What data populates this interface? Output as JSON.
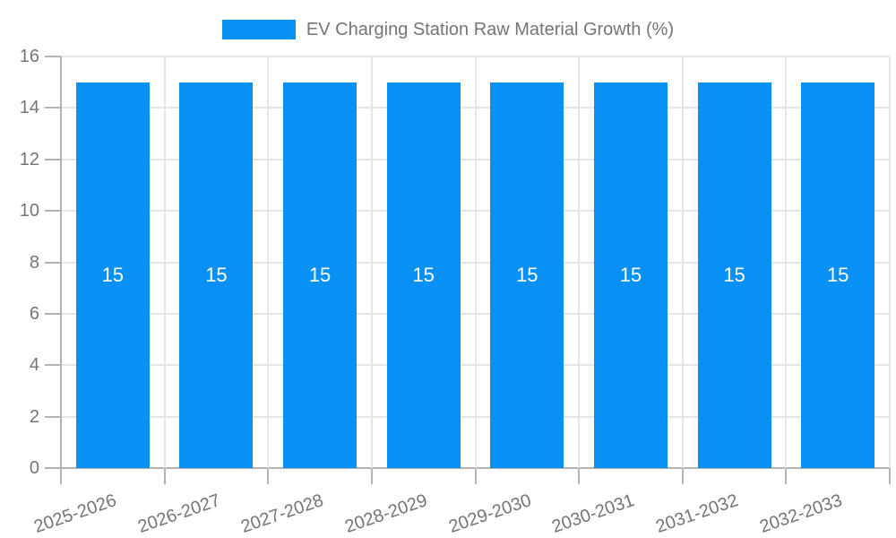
{
  "chart_data": {
    "type": "bar",
    "title": "EV Charging Station Raw Material Growth (%)",
    "categories": [
      "2025-2026",
      "2026-2027",
      "2027-2028",
      "2028-2029",
      "2029-2030",
      "2030-2031",
      "2031-2032",
      "2032-2033"
    ],
    "values": [
      15,
      15,
      15,
      15,
      15,
      15,
      15,
      15
    ],
    "value_labels": [
      "15",
      "15",
      "15",
      "15",
      "15",
      "15",
      "15",
      "15"
    ],
    "xlabel": "",
    "ylabel": "",
    "ylim": [
      0,
      16
    ],
    "ytick_step": 2,
    "ytick_labels": [
      "0",
      "2",
      "4",
      "6",
      "8",
      "10",
      "12",
      "14",
      "16"
    ],
    "grid": true,
    "legend_position": "top",
    "colors": {
      "bar": "#0990f5",
      "grid": "#e5e5e5",
      "axis": "#b3b3b3",
      "tick_label": "#757575",
      "value_label": "#ffffff",
      "background": "#ffffff"
    }
  }
}
